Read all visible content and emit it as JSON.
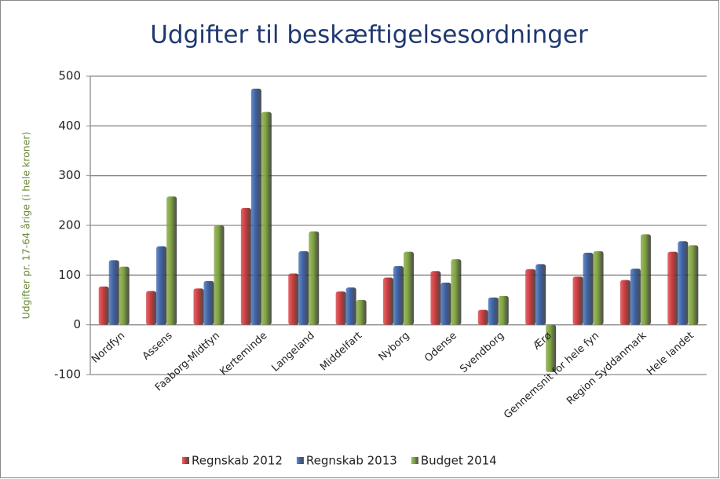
{
  "chart_data": {
    "type": "bar",
    "title": "Udgifter til beskæftigelsesordninger",
    "y_label": "Udgifter pr. 17-64 årige (i hele kroner)",
    "categories": [
      "Nordfyn",
      "Assens",
      "Faaborg-Midtfyn",
      "Kerteminde",
      "Langeland",
      "Middelfart",
      "Nyborg",
      "Odense",
      "Svendborg",
      "Ærø",
      "Gennemsnit for hele fyn",
      "Region Syddanmark",
      "Hele landet"
    ],
    "series": [
      {
        "name": "Regnskab 2012",
        "color": "#d0393b",
        "values": [
          77,
          68,
          73,
          235,
          103,
          67,
          95,
          108,
          30,
          112,
          97,
          90,
          147
        ]
      },
      {
        "name": "Regnskab 2013",
        "color": "#3a62a8",
        "values": [
          130,
          158,
          88,
          475,
          148,
          75,
          118,
          85,
          55,
          122,
          145,
          113,
          168
        ]
      },
      {
        "name": "Budget 2014",
        "color": "#7ea33c",
        "values": [
          117,
          258,
          200,
          428,
          188,
          50,
          147,
          132,
          58,
          -95,
          148,
          182,
          160
        ]
      }
    ],
    "ylim": [
      -100,
      500
    ],
    "yticks": [
      -100,
      0,
      100,
      200,
      300,
      400,
      500
    ],
    "grid": true,
    "legend": "bottom"
  }
}
